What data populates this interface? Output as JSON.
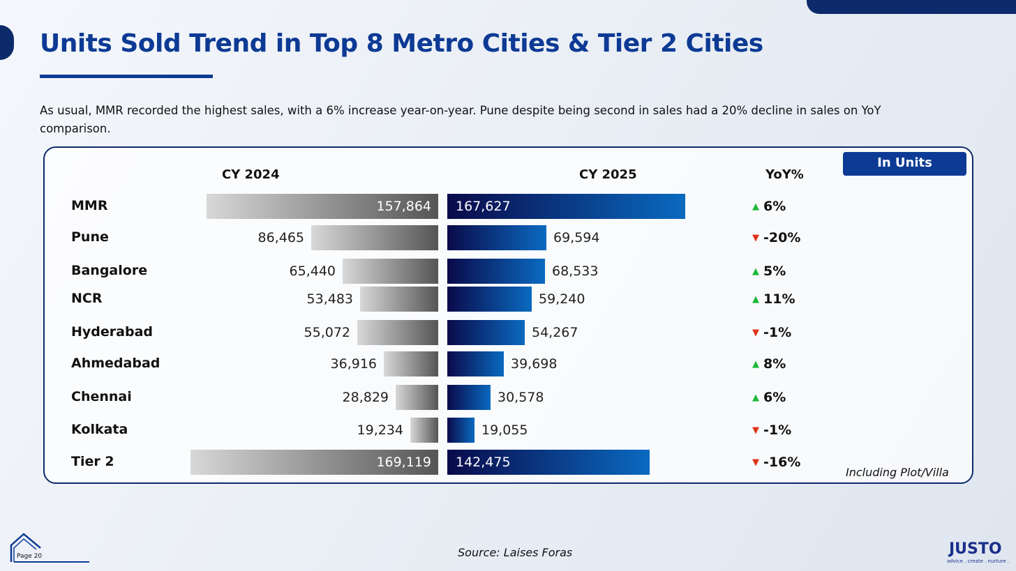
{
  "title": "Units Sold Trend in Top 8 Metro Cities & Tier 2 Cities",
  "subtitle": "As usual, MMR recorded the highest sales, with a 6% increase year-on-year. Pune despite being second in sales had a 20% decline in sales on YoY comparison.",
  "badge": "In Units",
  "note": "Including Plot/Villa",
  "source": "Source: Laises Foras",
  "page": "Page 20",
  "logo": "JUSTO",
  "tagline": "advice . create . nurture .",
  "colors": {
    "up": "#1db83a",
    "down": "#e0311a",
    "accent": "#0d3a94"
  },
  "chart_data": {
    "type": "bar",
    "title": "Units Sold Trend in Top 8 Metro Cities & Tier 2 Cities",
    "headers": {
      "left": "CY 2024",
      "right": "CY 2025",
      "yoy": "YoY%"
    },
    "categories": [
      "MMR",
      "Pune",
      "Bangalore",
      "NCR",
      "Hyderabad",
      "Ahmedabad",
      "Chennai",
      "Kolkata",
      "Tier 2"
    ],
    "series": [
      {
        "name": "CY 2024",
        "values": [
          157864,
          86465,
          65440,
          53483,
          55072,
          36916,
          28829,
          19234,
          169119
        ],
        "labels": [
          "157,864",
          "86,465",
          "65,440",
          "53,483",
          "55,072",
          "36,916",
          "28,829",
          "19,234",
          "169,119"
        ]
      },
      {
        "name": "CY 2025",
        "values": [
          167627,
          69594,
          68533,
          59240,
          54267,
          39698,
          30578,
          19055,
          142475
        ],
        "labels": [
          "167,627",
          "69,594",
          "68,533",
          "59,240",
          "54,267",
          "39,698",
          "30,578",
          "19,055",
          "142,475"
        ]
      }
    ],
    "yoy": [
      "6%",
      "-20%",
      "5%",
      "11%",
      "-1%",
      "8%",
      "6%",
      "-1%",
      "-16%"
    ],
    "yoy_dir": [
      "up",
      "down",
      "up",
      "up",
      "down",
      "up",
      "up",
      "down",
      "down"
    ]
  }
}
